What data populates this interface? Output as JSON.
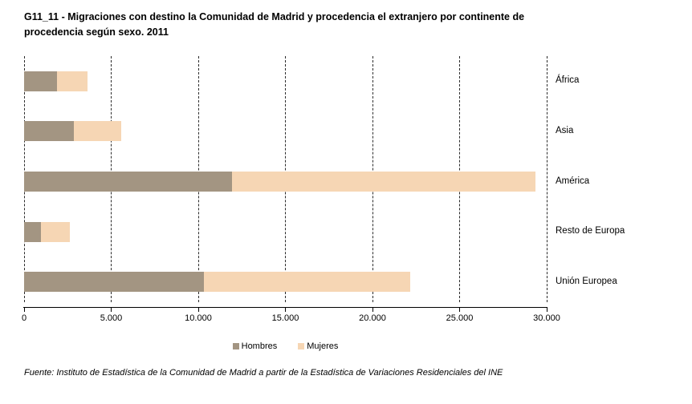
{
  "title": "G11_11 - Migraciones con destino la Comunidad de Madrid y procedencia el extranjero por continente de procedencia según sexo. 2011",
  "source_note": "Fuente: Instituto de Estadística de la Comunidad de Madrid a partir de la Estadística de Variaciones Residenciales del INE",
  "colors": {
    "hombres": "#A39582",
    "mujeres": "#F6D6B4",
    "axis": "#000000",
    "gridline": "#2B2B2B",
    "background": "#FFFFFF",
    "text": "#000000"
  },
  "chart_data": {
    "type": "bar",
    "orientation": "horizontal",
    "stacked": true,
    "title": "G11_11 - Migraciones con destino la Comunidad de Madrid y procedencia el extranjero por continente de procedencia según sexo. 2011",
    "categories": [
      "África",
      "Asia",
      "América",
      "Resto de Europa",
      "Unión Europea"
    ],
    "series": [
      {
        "name": "Hombres",
        "color": "#A39582",
        "values": [
          1900,
          2880,
          11930,
          970,
          10340
        ]
      },
      {
        "name": "Mujeres",
        "color": "#F6D6B4",
        "values": [
          1730,
          2690,
          17410,
          1650,
          11810
        ]
      }
    ],
    "xlim": [
      0,
      30000
    ],
    "x_tick_values": [
      0,
      5000,
      10000,
      15000,
      20000,
      25000,
      30000
    ],
    "x_tick_labels": [
      "0",
      "5.000",
      "10.000",
      "15.000",
      "20.000",
      "25.000",
      "30.000"
    ],
    "grid": "vertical-dashed",
    "legend_position": "bottom-center",
    "category_labels_position": "right"
  }
}
